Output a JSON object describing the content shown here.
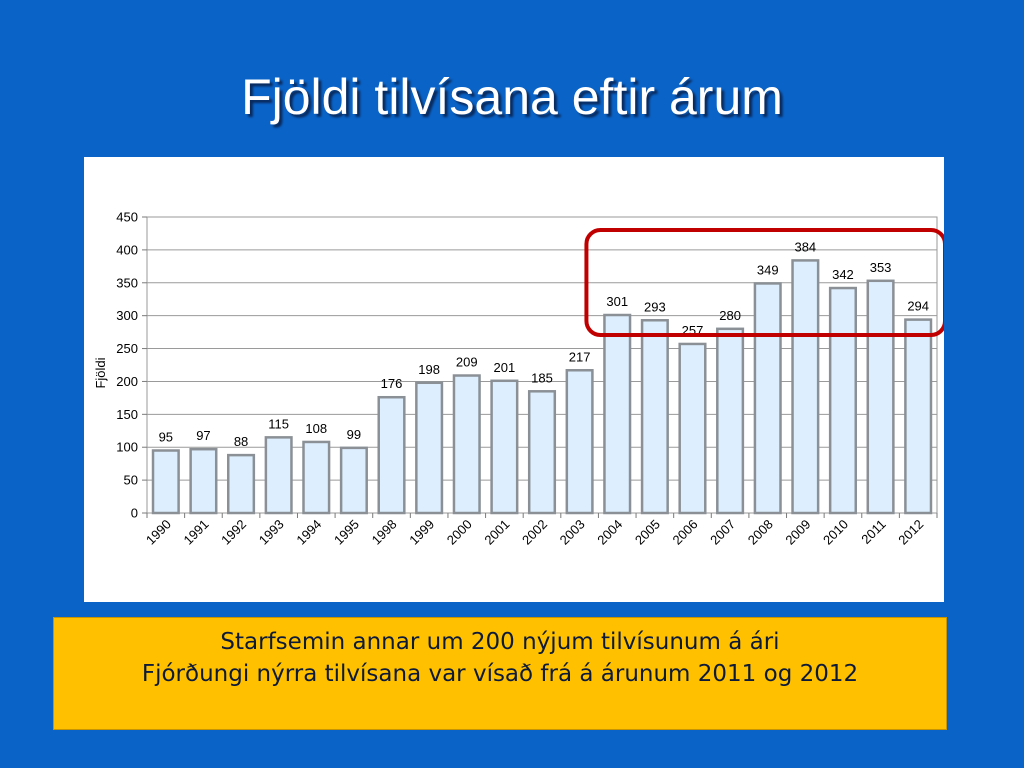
{
  "slide": {
    "title": "Fjöldi tilvísana eftir árum"
  },
  "notes": {
    "line1": "Starfsemin annar um 200 nýjum tilvísunum á ári",
    "line2": "Fjórðungi nýrra tilvísana var vísað frá á árunum 2011 og 2012"
  },
  "colors": {
    "background": "#0a64c8",
    "bar_fill": "#ddefff",
    "bar_stroke": "#8a9096",
    "highlight": "#c00000",
    "callout": "#ffc000"
  },
  "chart_data": {
    "type": "bar",
    "title": "",
    "xlabel": "",
    "ylabel": "Fjöldi",
    "categories": [
      "1990",
      "1991",
      "1992",
      "1993",
      "1994",
      "1995",
      "1998",
      "1999",
      "2000",
      "2001",
      "2002",
      "2003",
      "2004",
      "2005",
      "2006",
      "2007",
      "2008",
      "2009",
      "2010",
      "2011",
      "2012"
    ],
    "values": [
      95,
      97,
      88,
      115,
      108,
      99,
      176,
      198,
      209,
      201,
      185,
      217,
      301,
      293,
      257,
      280,
      349,
      384,
      342,
      353,
      294
    ],
    "ylim": [
      0,
      450
    ],
    "yticks": [
      0,
      50,
      100,
      150,
      200,
      250,
      300,
      350,
      400,
      450
    ],
    "grid": true,
    "legend": "none",
    "highlight_categories": [
      "2004",
      "2005",
      "2006",
      "2007",
      "2008",
      "2009",
      "2010",
      "2011",
      "2012"
    ]
  }
}
